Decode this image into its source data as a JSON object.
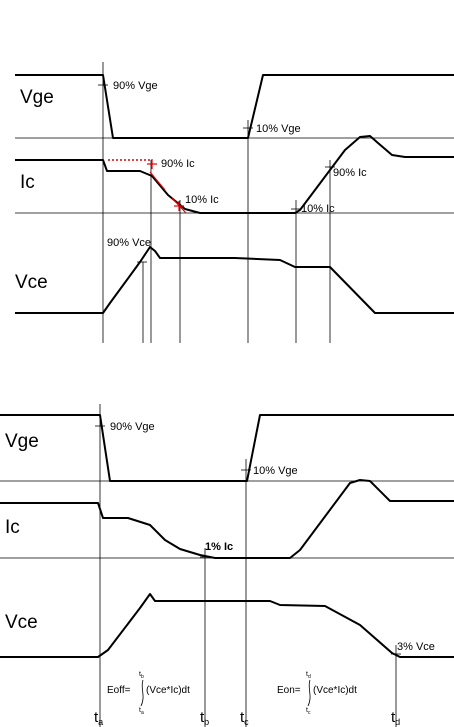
{
  "top": {
    "rows": {
      "vge": "Vge",
      "ic": "Ic",
      "vce": "Vce"
    },
    "annotations": {
      "vge_90": "90% Vge",
      "vge_10": "10% Vge",
      "ic_90_off": "90% Ic",
      "ic_10_off": "10% Ic",
      "ic_10_on": "10% Ic",
      "ic_90_on": "90% Ic",
      "vce_90": "90% Vce"
    }
  },
  "bottom": {
    "rows": {
      "vge": "Vge",
      "ic": "Ic",
      "vce": "Vce"
    },
    "annotations": {
      "vge_90": "90% Vge",
      "vge_10": "10% Vge",
      "ic_1": "1% Ic",
      "vce_3": "3% Vce"
    },
    "eoff": {
      "prefix": "Eoff=",
      "upper": "t",
      "upper_sub": "b",
      "lower": "t",
      "lower_sub": "a",
      "integrand": "(Vce*Ic)dt"
    },
    "eon": {
      "prefix": "Eon=",
      "upper": "t",
      "upper_sub": "d",
      "lower": "t",
      "lower_sub": "c",
      "integrand": "(Vce*Ic)dt"
    },
    "time_labels": [
      {
        "t": "t",
        "sub": "a"
      },
      {
        "t": "t",
        "sub": "b"
      },
      {
        "t": "t",
        "sub": "c"
      },
      {
        "t": "t",
        "sub": "d"
      }
    ]
  }
}
